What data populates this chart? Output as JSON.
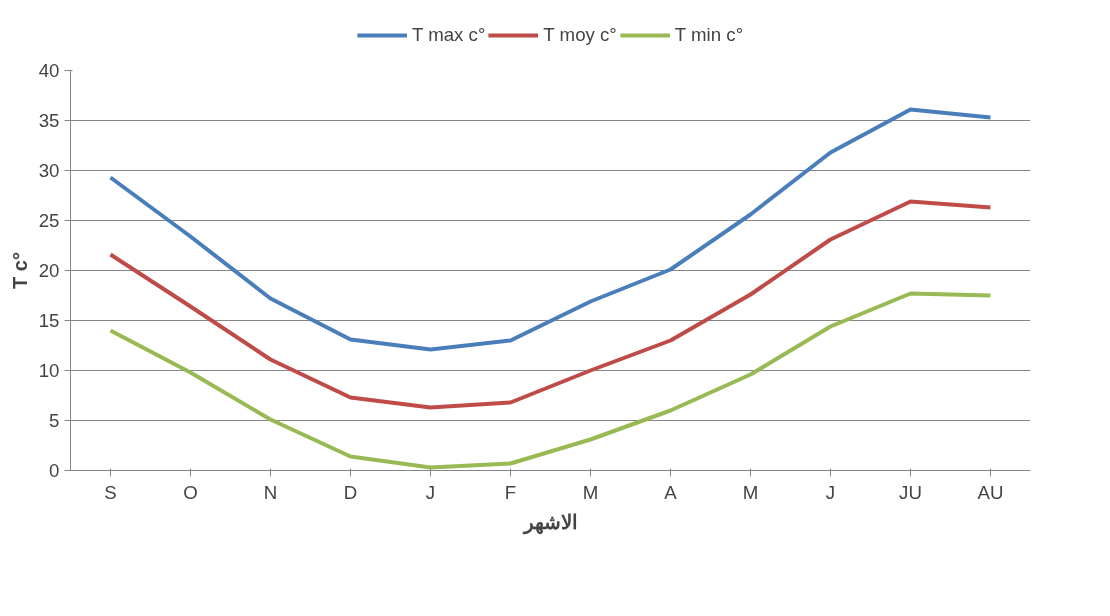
{
  "chart_data": {
    "type": "line",
    "xlabel": "الاشهر",
    "ylabel": "T c°",
    "categories": [
      "S",
      "O",
      "N",
      "D",
      "J",
      "F",
      "M",
      "A",
      "M",
      "J",
      "JU",
      "AU"
    ],
    "series": [
      {
        "name": "T max c°",
        "color": "#4a7ebb",
        "values": [
          29.3,
          23.4,
          17.2,
          13.1,
          12.1,
          13.0,
          16.9,
          20.1,
          25.6,
          31.8,
          36.1,
          35.3
        ]
      },
      {
        "name": "T moy c°",
        "color": "#be4b48",
        "values": [
          21.6,
          16.4,
          11.1,
          7.3,
          6.3,
          6.8,
          10.0,
          13.0,
          17.6,
          23.1,
          26.9,
          26.3
        ]
      },
      {
        "name": "T min c°",
        "color": "#98b954",
        "values": [
          14.0,
          9.8,
          5.1,
          1.4,
          0.3,
          0.7,
          3.1,
          6.0,
          9.6,
          14.4,
          17.7,
          17.5
        ]
      }
    ],
    "ylim": [
      0,
      40
    ],
    "yticks": [
      0,
      5,
      10,
      15,
      20,
      25,
      30,
      35,
      40
    ],
    "grid": "y",
    "legend": "top",
    "marker": "none",
    "line_style": "solid"
  }
}
